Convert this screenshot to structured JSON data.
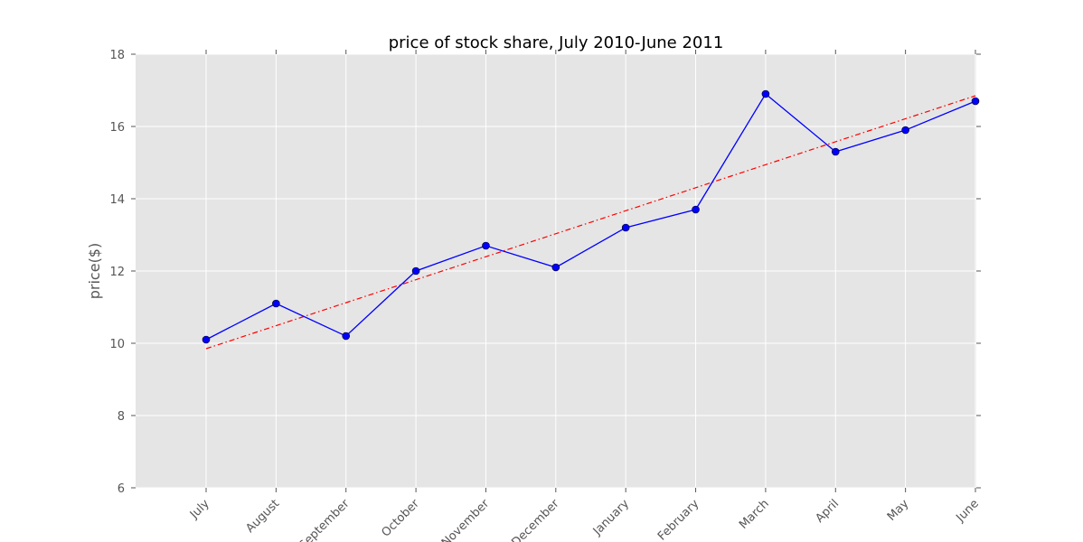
{
  "chart_data": {
    "type": "line",
    "title": "price of stock share, July 2010-June 2011",
    "xlabel": "",
    "ylabel": "price($)",
    "categories": [
      "July",
      "August",
      "September",
      "October",
      "November",
      "December",
      "January",
      "February",
      "March",
      "April",
      "May",
      "June"
    ],
    "series": [
      {
        "values": [
          10.1,
          11.1,
          10.2,
          12.0,
          12.7,
          12.1,
          13.2,
          13.7,
          16.9,
          15.3,
          15.9,
          16.7
        ],
        "color": "#0000ff",
        "marker": "circle"
      }
    ],
    "trendline": {
      "start": 9.85,
      "end": 16.85,
      "color": "#ff0000",
      "style": "dash-dot"
    },
    "ylim": [
      6,
      18
    ],
    "yticks": [
      6,
      8,
      10,
      12,
      14,
      16,
      18
    ],
    "grid": true,
    "background": "#e5e5e5",
    "grid_color": "#ffffff"
  }
}
